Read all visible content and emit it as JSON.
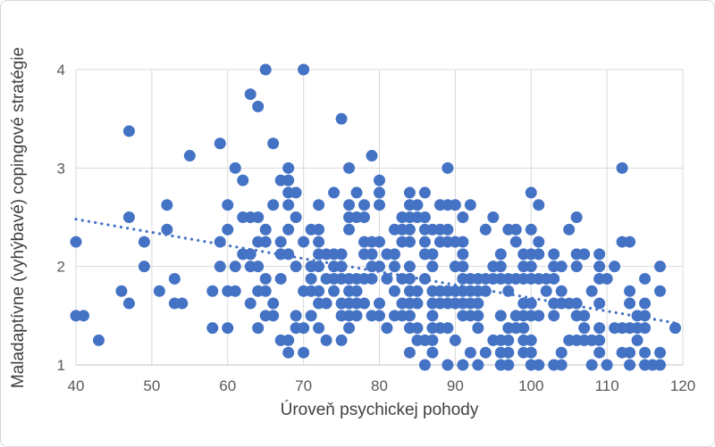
{
  "figure": {
    "background": "#FFFFFF",
    "border_color": "#D7D7D7"
  },
  "chart_data": {
    "type": "scatter",
    "title": "",
    "xlabel": "Úroveň psychickej pohody",
    "ylabel": "Maladaptívne (vyhýbavé) copingové stratégie",
    "xlim": [
      40,
      120
    ],
    "ylim": [
      1,
      4
    ],
    "x_ticks": [
      40,
      50,
      60,
      70,
      80,
      90,
      100,
      110,
      120
    ],
    "y_ticks": [
      1,
      2,
      3,
      4
    ],
    "grid": true,
    "gridline_color": "#D9D9D9",
    "axis_line_color": "#BFBFBF",
    "tick_label_color": "#595959",
    "axis_title_color": "#404040",
    "marker_color": "#4472C4",
    "marker_radius": 6.5,
    "trendline": {
      "style": "dotted",
      "color": "#4472C4",
      "x_start": 40,
      "y_start": 2.48,
      "x_end": 119.5,
      "y_end": 1.42
    },
    "points": [
      [
        65,
        4
      ],
      [
        70,
        4
      ],
      [
        63,
        3.75
      ],
      [
        64,
        3.625
      ],
      [
        75,
        3.5
      ],
      [
        47,
        3.375
      ],
      [
        59,
        3.25
      ],
      [
        66,
        3.25
      ],
      [
        55,
        3.125
      ],
      [
        79,
        3.125
      ],
      [
        61,
        3
      ],
      [
        68,
        3
      ],
      [
        76,
        3
      ],
      [
        89,
        3
      ],
      [
        112,
        3
      ],
      [
        62,
        2.875
      ],
      [
        67,
        2.875
      ],
      [
        68,
        2.875
      ],
      [
        80,
        2.875
      ],
      [
        68,
        2.75
      ],
      [
        69,
        2.75
      ],
      [
        74,
        2.75
      ],
      [
        77,
        2.75
      ],
      [
        80,
        2.75
      ],
      [
        84,
        2.75
      ],
      [
        86,
        2.75
      ],
      [
        100,
        2.75
      ],
      [
        52,
        2.625
      ],
      [
        60,
        2.625
      ],
      [
        66,
        2.625
      ],
      [
        68,
        2.625
      ],
      [
        72,
        2.625
      ],
      [
        76,
        2.625
      ],
      [
        78,
        2.625
      ],
      [
        80,
        2.625
      ],
      [
        84,
        2.625
      ],
      [
        85,
        2.625
      ],
      [
        88,
        2.625
      ],
      [
        89,
        2.625
      ],
      [
        90,
        2.625
      ],
      [
        92,
        2.625
      ],
      [
        101,
        2.625
      ],
      [
        47,
        2.5
      ],
      [
        62,
        2.5
      ],
      [
        63,
        2.5
      ],
      [
        64,
        2.5
      ],
      [
        69,
        2.5
      ],
      [
        76,
        2.5
      ],
      [
        77,
        2.5
      ],
      [
        78,
        2.5
      ],
      [
        83,
        2.5
      ],
      [
        84,
        2.5
      ],
      [
        85,
        2.5
      ],
      [
        86,
        2.5
      ],
      [
        91,
        2.5
      ],
      [
        95,
        2.5
      ],
      [
        106,
        2.5
      ],
      [
        52,
        2.375
      ],
      [
        60,
        2.375
      ],
      [
        65,
        2.375
      ],
      [
        68,
        2.375
      ],
      [
        71,
        2.375
      ],
      [
        72,
        2.375
      ],
      [
        76,
        2.375
      ],
      [
        82,
        2.375
      ],
      [
        83,
        2.375
      ],
      [
        84,
        2.375
      ],
      [
        86,
        2.375
      ],
      [
        87,
        2.375
      ],
      [
        88,
        2.375
      ],
      [
        89,
        2.375
      ],
      [
        94,
        2.375
      ],
      [
        97,
        2.375
      ],
      [
        98,
        2.375
      ],
      [
        100,
        2.375
      ],
      [
        105,
        2.375
      ],
      [
        40,
        2.25
      ],
      [
        49,
        2.25
      ],
      [
        59,
        2.25
      ],
      [
        64,
        2.25
      ],
      [
        65,
        2.25
      ],
      [
        67,
        2.25
      ],
      [
        70,
        2.25
      ],
      [
        72,
        2.25
      ],
      [
        78,
        2.25
      ],
      [
        79,
        2.25
      ],
      [
        80,
        2.25
      ],
      [
        83,
        2.25
      ],
      [
        84,
        2.25
      ],
      [
        86,
        2.25
      ],
      [
        88,
        2.25
      ],
      [
        89,
        2.25
      ],
      [
        90,
        2.25
      ],
      [
        91,
        2.25
      ],
      [
        98,
        2.25
      ],
      [
        101,
        2.25
      ],
      [
        112,
        2.25
      ],
      [
        113,
        2.25
      ],
      [
        62,
        2.125
      ],
      [
        63,
        2.125
      ],
      [
        67,
        2.125
      ],
      [
        68,
        2.125
      ],
      [
        72,
        2.125
      ],
      [
        73,
        2.125
      ],
      [
        74,
        2.125
      ],
      [
        75,
        2.125
      ],
      [
        78,
        2.125
      ],
      [
        79,
        2.125
      ],
      [
        81,
        2.125
      ],
      [
        82,
        2.125
      ],
      [
        86,
        2.125
      ],
      [
        87,
        2.125
      ],
      [
        91,
        2.125
      ],
      [
        96,
        2.125
      ],
      [
        99,
        2.125
      ],
      [
        100,
        2.125
      ],
      [
        101,
        2.125
      ],
      [
        103,
        2.125
      ],
      [
        106,
        2.125
      ],
      [
        107,
        2.125
      ],
      [
        109,
        2.125
      ],
      [
        49,
        2
      ],
      [
        59,
        2
      ],
      [
        61,
        2
      ],
      [
        63,
        2
      ],
      [
        64,
        2
      ],
      [
        69,
        2
      ],
      [
        71,
        2
      ],
      [
        72,
        2
      ],
      [
        74,
        2
      ],
      [
        75,
        2
      ],
      [
        79,
        2
      ],
      [
        80,
        2
      ],
      [
        82,
        2
      ],
      [
        84,
        2
      ],
      [
        87,
        2
      ],
      [
        90,
        2
      ],
      [
        91,
        2
      ],
      [
        95,
        2
      ],
      [
        96,
        2
      ],
      [
        99,
        2
      ],
      [
        100,
        2
      ],
      [
        103,
        2
      ],
      [
        104,
        2
      ],
      [
        106,
        2
      ],
      [
        109,
        2
      ],
      [
        111,
        2
      ],
      [
        117,
        2
      ],
      [
        53,
        1.875
      ],
      [
        65,
        1.875
      ],
      [
        67,
        1.875
      ],
      [
        71,
        1.875
      ],
      [
        73,
        1.875
      ],
      [
        74,
        1.875
      ],
      [
        75,
        1.875
      ],
      [
        76,
        1.875
      ],
      [
        77,
        1.875
      ],
      [
        78,
        1.875
      ],
      [
        79,
        1.875
      ],
      [
        81,
        1.875
      ],
      [
        83,
        1.875
      ],
      [
        84,
        1.875
      ],
      [
        86,
        1.875
      ],
      [
        91,
        1.875
      ],
      [
        92,
        1.875
      ],
      [
        93,
        1.875
      ],
      [
        94,
        1.875
      ],
      [
        95,
        1.875
      ],
      [
        96,
        1.875
      ],
      [
        97,
        1.875
      ],
      [
        98,
        1.875
      ],
      [
        99,
        1.875
      ],
      [
        100,
        1.875
      ],
      [
        101,
        1.875
      ],
      [
        102,
        1.875
      ],
      [
        103,
        1.875
      ],
      [
        109,
        1.875
      ],
      [
        110,
        1.875
      ],
      [
        115,
        1.875
      ],
      [
        46,
        1.75
      ],
      [
        51,
        1.75
      ],
      [
        58,
        1.75
      ],
      [
        60,
        1.75
      ],
      [
        61,
        1.75
      ],
      [
        64,
        1.75
      ],
      [
        65,
        1.75
      ],
      [
        70,
        1.75
      ],
      [
        71,
        1.75
      ],
      [
        72,
        1.75
      ],
      [
        74,
        1.75
      ],
      [
        76,
        1.75
      ],
      [
        77,
        1.75
      ],
      [
        82,
        1.75
      ],
      [
        84,
        1.75
      ],
      [
        85,
        1.75
      ],
      [
        87,
        1.75
      ],
      [
        88,
        1.75
      ],
      [
        89,
        1.75
      ],
      [
        90,
        1.75
      ],
      [
        91,
        1.75
      ],
      [
        92,
        1.75
      ],
      [
        93,
        1.75
      ],
      [
        94,
        1.75
      ],
      [
        97,
        1.75
      ],
      [
        102,
        1.75
      ],
      [
        104,
        1.75
      ],
      [
        108,
        1.75
      ],
      [
        113,
        1.75
      ],
      [
        117,
        1.75
      ],
      [
        47,
        1.625
      ],
      [
        53,
        1.625
      ],
      [
        54,
        1.625
      ],
      [
        63,
        1.625
      ],
      [
        66,
        1.625
      ],
      [
        72,
        1.625
      ],
      [
        73,
        1.625
      ],
      [
        75,
        1.625
      ],
      [
        76,
        1.625
      ],
      [
        77,
        1.625
      ],
      [
        78,
        1.625
      ],
      [
        80,
        1.625
      ],
      [
        83,
        1.625
      ],
      [
        84,
        1.625
      ],
      [
        85,
        1.625
      ],
      [
        87,
        1.625
      ],
      [
        88,
        1.625
      ],
      [
        89,
        1.625
      ],
      [
        90,
        1.625
      ],
      [
        91,
        1.625
      ],
      [
        92,
        1.625
      ],
      [
        93,
        1.625
      ],
      [
        99,
        1.625
      ],
      [
        100,
        1.625
      ],
      [
        103,
        1.625
      ],
      [
        104,
        1.625
      ],
      [
        105,
        1.625
      ],
      [
        106,
        1.625
      ],
      [
        109,
        1.625
      ],
      [
        113,
        1.625
      ],
      [
        115,
        1.625
      ],
      [
        40,
        1.5
      ],
      [
        41,
        1.5
      ],
      [
        65,
        1.5
      ],
      [
        66,
        1.5
      ],
      [
        69,
        1.5
      ],
      [
        71,
        1.5
      ],
      [
        75,
        1.5
      ],
      [
        76,
        1.5
      ],
      [
        77,
        1.5
      ],
      [
        79,
        1.5
      ],
      [
        80,
        1.5
      ],
      [
        82,
        1.5
      ],
      [
        83,
        1.5
      ],
      [
        84,
        1.5
      ],
      [
        87,
        1.5
      ],
      [
        91,
        1.5
      ],
      [
        92,
        1.5
      ],
      [
        93,
        1.5
      ],
      [
        96,
        1.5
      ],
      [
        98,
        1.5
      ],
      [
        99,
        1.5
      ],
      [
        100,
        1.5
      ],
      [
        101,
        1.5
      ],
      [
        103,
        1.5
      ],
      [
        106,
        1.5
      ],
      [
        107,
        1.5
      ],
      [
        114,
        1.5
      ],
      [
        115,
        1.5
      ],
      [
        58,
        1.375
      ],
      [
        60,
        1.375
      ],
      [
        64,
        1.375
      ],
      [
        69,
        1.375
      ],
      [
        70,
        1.375
      ],
      [
        72,
        1.375
      ],
      [
        76,
        1.375
      ],
      [
        81,
        1.375
      ],
      [
        84,
        1.375
      ],
      [
        85,
        1.375
      ],
      [
        87,
        1.375
      ],
      [
        88,
        1.375
      ],
      [
        89,
        1.375
      ],
      [
        93,
        1.375
      ],
      [
        97,
        1.375
      ],
      [
        98,
        1.375
      ],
      [
        99,
        1.375
      ],
      [
        107,
        1.375
      ],
      [
        109,
        1.375
      ],
      [
        111,
        1.375
      ],
      [
        112,
        1.375
      ],
      [
        113,
        1.375
      ],
      [
        114,
        1.375
      ],
      [
        115,
        1.375
      ],
      [
        119,
        1.375
      ],
      [
        43,
        1.25
      ],
      [
        67,
        1.25
      ],
      [
        68,
        1.25
      ],
      [
        73,
        1.25
      ],
      [
        75,
        1.25
      ],
      [
        85,
        1.25
      ],
      [
        86,
        1.25
      ],
      [
        87,
        1.25
      ],
      [
        90,
        1.25
      ],
      [
        95,
        1.25
      ],
      [
        96,
        1.25
      ],
      [
        97,
        1.25
      ],
      [
        99,
        1.25
      ],
      [
        100,
        1.25
      ],
      [
        105,
        1.25
      ],
      [
        106,
        1.25
      ],
      [
        107,
        1.25
      ],
      [
        108,
        1.25
      ],
      [
        109,
        1.25
      ],
      [
        114,
        1.25
      ],
      [
        68,
        1.125
      ],
      [
        70,
        1.125
      ],
      [
        84,
        1.125
      ],
      [
        87,
        1.125
      ],
      [
        92,
        1.125
      ],
      [
        94,
        1.125
      ],
      [
        96,
        1.125
      ],
      [
        97,
        1.125
      ],
      [
        99,
        1.125
      ],
      [
        100,
        1.125
      ],
      [
        104,
        1.125
      ],
      [
        109,
        1.125
      ],
      [
        112,
        1.125
      ],
      [
        113,
        1.125
      ],
      [
        115,
        1.125
      ],
      [
        117,
        1.125
      ],
      [
        86,
        1
      ],
      [
        89,
        1
      ],
      [
        91,
        1
      ],
      [
        93,
        1
      ],
      [
        96,
        1
      ],
      [
        97,
        1
      ],
      [
        100,
        1
      ],
      [
        101,
        1
      ],
      [
        103,
        1
      ],
      [
        104,
        1
      ],
      [
        108,
        1
      ],
      [
        110,
        1
      ],
      [
        113,
        1
      ],
      [
        115,
        1
      ],
      [
        116,
        1
      ],
      [
        117,
        1
      ]
    ]
  }
}
